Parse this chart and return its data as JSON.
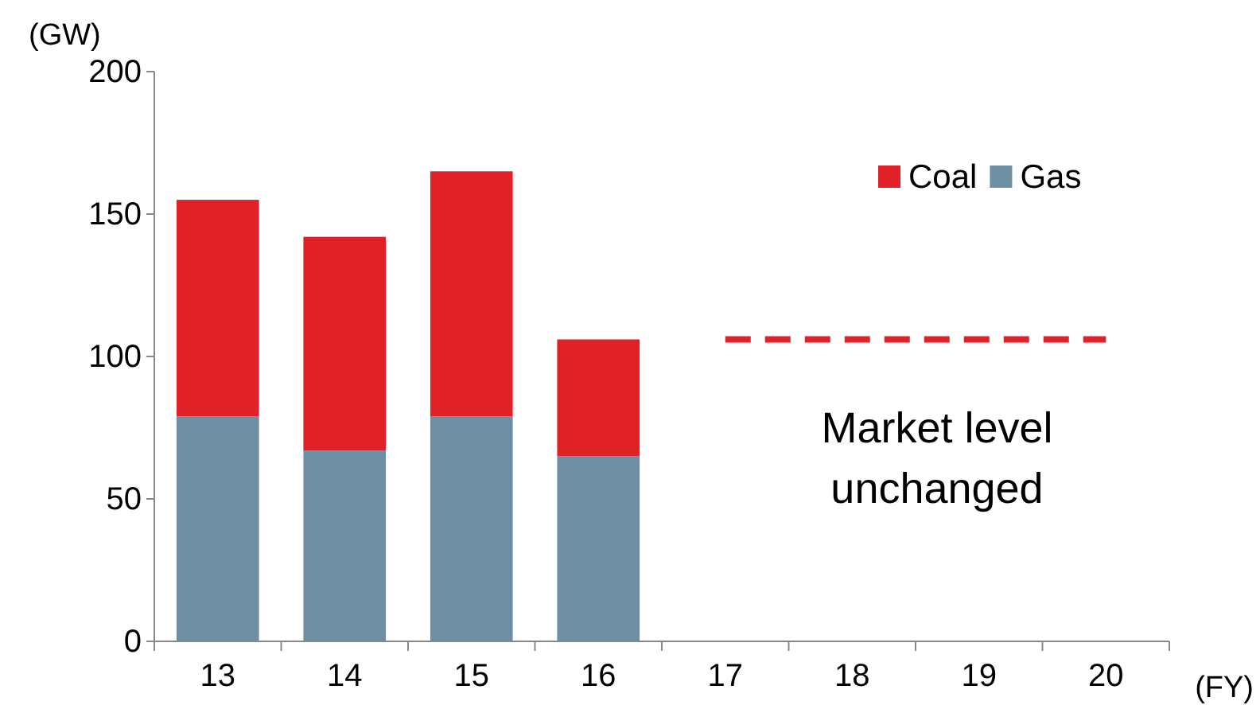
{
  "chart_data": {
    "type": "bar",
    "stacked": true,
    "ylabel": "(GW)",
    "xlabel": "(FY)",
    "categories": [
      "13",
      "14",
      "15",
      "16",
      "17",
      "18",
      "19",
      "20"
    ],
    "series": [
      {
        "name": "Gas",
        "color": "#6e8fa3",
        "values": [
          79,
          67,
          79,
          65,
          null,
          null,
          null,
          null
        ]
      },
      {
        "name": "Coal",
        "color": "#e02128",
        "values": [
          76,
          75,
          86,
          41,
          null,
          null,
          null,
          null
        ]
      },
      {
        "type": "line",
        "color": "#e02128",
        "line_style": "dashed",
        "values": [
          null,
          null,
          null,
          null,
          106,
          106,
          106,
          106
        ]
      }
    ],
    "ylim": [
      0,
      200
    ],
    "yticks": [
      0,
      50,
      100,
      150,
      200
    ],
    "legend": "top right",
    "annotations": [
      "Market level\nunchanged"
    ]
  }
}
